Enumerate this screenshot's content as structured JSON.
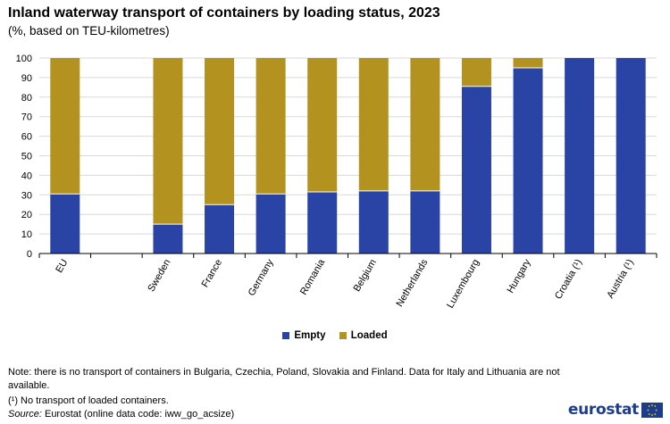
{
  "header": {
    "title": "Inland waterway transport of containers by loading status, 2023",
    "subtitle": "(%, based on TEU-kilometres)"
  },
  "colors": {
    "empty": "#2a44a6",
    "loaded": "#b3921f",
    "grid": "#d9d9d9"
  },
  "chart_data": {
    "type": "bar",
    "stacked": true,
    "title": "Inland waterway transport of containers by loading status, 2023",
    "subtitle": "(%, based on TEU-kilometres)",
    "xlabel": "",
    "ylabel": "",
    "ylim": [
      0,
      100
    ],
    "yticks": [
      "0",
      "10",
      "20",
      "30",
      "40",
      "50",
      "60",
      "70",
      "80",
      "90",
      "100"
    ],
    "grid": true,
    "legend_position": "bottom-center",
    "categories": [
      "EU",
      "",
      "Sweden",
      "France",
      "Germany",
      "Romania",
      "Belgium",
      "Netherlands",
      "Luxembourg",
      "Hungary",
      "Croatia (¹)",
      "Austria (¹)"
    ],
    "series": [
      {
        "name": "Empty",
        "values": [
          30.5,
          null,
          15,
          25,
          30.5,
          31.5,
          32,
          32,
          85.5,
          95,
          100,
          100
        ]
      },
      {
        "name": "Loaded",
        "values": [
          69.5,
          null,
          85,
          75,
          69.5,
          68.5,
          68,
          68,
          14.5,
          5,
          0,
          0
        ]
      }
    ]
  },
  "legend": {
    "empty": "Empty",
    "loaded": "Loaded"
  },
  "notes": {
    "note1": "Note: there is no transport of containers in Bulgaria, Czechia, Poland, Slovakia and Finland. Data for Italy and Lithuania are not available.",
    "note2": "(¹) No transport of loaded containers.",
    "source_label": "Source:",
    "source_text": " Eurostat (online data code: iww_go_acsize)"
  },
  "logo": {
    "text": "eurostat"
  }
}
